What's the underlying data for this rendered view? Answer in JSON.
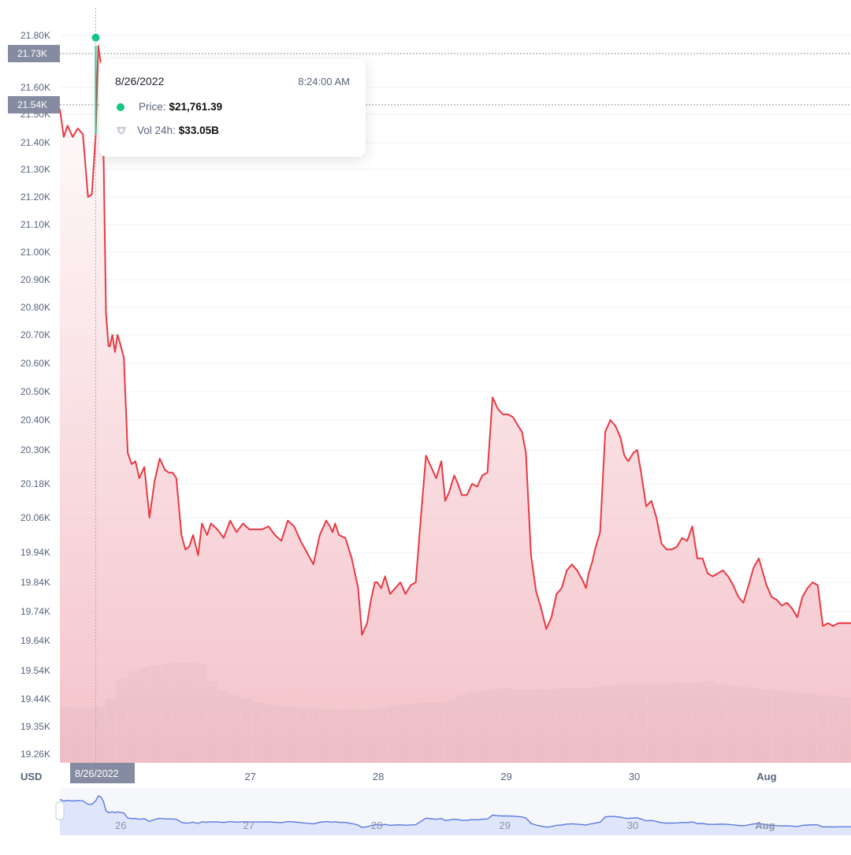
{
  "colors": {
    "price_line": "#ea3943",
    "hover_line": "#16c784",
    "area_top": "#ffffff",
    "area_bottom": "#f2b8c0",
    "volume_bar": "#d5d9e2",
    "axis_tag_bg": "#858ca2",
    "navigator_line": "#5b7be0",
    "navigator_fill": "#dfe5fb"
  },
  "crosshair": {
    "price_tag": "21.73K",
    "ref_price_tag": "21.54K",
    "date_tag": "8/26/2022"
  },
  "tooltip": {
    "date": "8/26/2022",
    "time": "8:24:00 AM",
    "price_label": "Price:",
    "price_value": "$21,761.39",
    "vol_label": "Vol 24h:",
    "vol_value": "$33.05B",
    "price_icon": "green-dot-icon",
    "vol_icon": "shield-icon"
  },
  "currency_label": "USD",
  "chart_data": {
    "type": "line",
    "title": "",
    "xlabel": "",
    "ylabel": "",
    "y_tick_labels": [
      "21.80K",
      "21.60K",
      "21.50K",
      "21.40K",
      "21.30K",
      "21.20K",
      "21.10K",
      "21.00K",
      "20.90K",
      "20.80K",
      "20.70K",
      "20.60K",
      "20.50K",
      "20.40K",
      "20.30K",
      "20.18K",
      "20.06K",
      "19.94K",
      "19.84K",
      "19.74K",
      "19.64K",
      "19.54K",
      "19.44K",
      "19.35K",
      "19.26K"
    ],
    "y_tick_values": [
      21800,
      21600,
      21500,
      21400,
      21300,
      21200,
      21100,
      21000,
      20900,
      20800,
      20700,
      20600,
      20500,
      20400,
      20300,
      20180,
      20060,
      19940,
      19840,
      19740,
      19640,
      19540,
      19440,
      19350,
      19260
    ],
    "x_tick_labels": [
      "26",
      "27",
      "28",
      "29",
      "30",
      "Aug"
    ],
    "x_tick_days": [
      26,
      27,
      28,
      29,
      30,
      31
    ],
    "xlim_days": [
      25.52,
      31.7
    ],
    "grid": true,
    "series": [
      {
        "values_day": [
          25.52,
          25.55,
          25.58,
          25.62,
          25.66,
          25.7,
          25.74,
          25.77,
          25.8,
          25.82,
          25.84,
          25.86,
          25.88,
          25.9,
          25.91,
          25.93,
          25.95,
          25.97,
          25.99,
          26.02,
          26.05,
          26.08,
          26.11,
          26.14,
          26.18,
          26.22,
          26.26,
          26.3,
          26.34,
          26.37,
          26.4,
          26.43,
          26.47,
          26.5,
          26.53,
          26.56,
          26.6,
          26.63,
          26.67,
          26.7,
          26.75,
          26.8,
          26.85,
          26.9,
          26.95,
          27.0,
          27.05,
          27.1,
          27.15,
          27.2,
          27.25,
          27.3,
          27.35,
          27.4,
          27.45,
          27.5,
          27.55,
          27.6,
          27.63,
          27.65,
          27.67,
          27.7,
          27.75,
          27.8,
          27.85,
          27.88,
          27.92,
          27.95,
          27.98,
          28.0,
          28.03,
          28.06,
          28.1,
          28.14,
          28.18,
          28.22,
          28.26,
          28.3,
          28.34,
          28.38,
          28.42,
          28.46,
          28.5,
          28.53,
          28.56,
          28.6,
          28.63,
          28.66,
          28.7,
          28.74,
          28.78,
          28.82,
          28.86,
          28.9,
          28.94,
          28.98,
          29.02,
          29.06,
          29.1,
          29.13,
          29.16,
          29.2,
          29.24,
          29.28,
          29.32,
          29.36,
          29.4,
          29.44,
          29.48,
          29.52,
          29.56,
          29.6,
          29.63,
          29.65,
          29.68,
          29.7,
          29.74,
          29.78,
          29.82,
          29.86,
          29.9,
          29.93,
          29.96,
          30.0,
          30.03,
          30.06,
          30.1,
          30.14,
          30.18,
          30.22,
          30.26,
          30.3,
          30.34,
          30.38,
          30.42,
          30.46,
          30.5,
          30.54,
          30.58,
          30.62,
          30.66,
          30.7,
          30.74,
          30.78,
          30.82,
          30.86,
          30.9,
          30.94,
          30.98,
          31.0,
          31.04,
          31.08,
          31.12,
          31.16,
          31.2,
          31.24,
          31.28,
          31.32,
          31.36,
          31.4,
          31.44,
          31.48,
          31.52,
          31.56,
          31.6,
          31.64,
          31.68,
          31.7
        ],
        "values_usd": [
          21520,
          21420,
          21460,
          21420,
          21450,
          21430,
          21200,
          21210,
          21430,
          21760,
          21690,
          21400,
          20780,
          20660,
          20660,
          20700,
          20640,
          20700,
          20670,
          20620,
          20290,
          20250,
          20260,
          20200,
          20240,
          20060,
          20190,
          20270,
          20230,
          20220,
          20220,
          20200,
          20000,
          19950,
          19960,
          20000,
          19930,
          20040,
          20000,
          20040,
          20020,
          19990,
          20050,
          20010,
          20040,
          20020,
          20020,
          20020,
          20030,
          20000,
          19980,
          20050,
          20030,
          19980,
          19940,
          19900,
          20000,
          20050,
          20030,
          20010,
          20040,
          20000,
          19990,
          19920,
          19820,
          19660,
          19700,
          19780,
          19840,
          19840,
          19820,
          19860,
          19800,
          19820,
          19840,
          19800,
          19830,
          19840,
          20060,
          20280,
          20240,
          20200,
          20260,
          20120,
          20150,
          20210,
          20180,
          20140,
          20140,
          20180,
          20170,
          20210,
          20220,
          20480,
          20440,
          20420,
          20420,
          20410,
          20380,
          20360,
          20290,
          19930,
          19810,
          19750,
          19680,
          19720,
          19800,
          19820,
          19880,
          19900,
          19880,
          19850,
          19820,
          19870,
          19910,
          19950,
          20010,
          20360,
          20400,
          20380,
          20340,
          20280,
          20260,
          20290,
          20300,
          20220,
          20100,
          20120,
          20060,
          19970,
          19950,
          19950,
          19960,
          19990,
          19980,
          20030,
          19920,
          19920,
          19870,
          19860,
          19870,
          19880,
          19860,
          19830,
          19790,
          19770,
          19830,
          19890,
          19920,
          19890,
          19830,
          19790,
          19780,
          19760,
          19770,
          19750,
          19720,
          19790,
          19820,
          19840,
          19830,
          19690,
          19700,
          19690,
          19700,
          19700,
          19700,
          19700
        ],
        "name": ""
      }
    ],
    "volume_levels": [
      0.48,
      0.47,
      0.47,
      0.48,
      0.55,
      0.72,
      0.78,
      0.82,
      0.84,
      0.85,
      0.86,
      0.86,
      0.85,
      0.7,
      0.62,
      0.58,
      0.55,
      0.52,
      0.5,
      0.49,
      0.48,
      0.47,
      0.47,
      0.46,
      0.46,
      0.46,
      0.46,
      0.46,
      0.47,
      0.49,
      0.5,
      0.51,
      0.52,
      0.52,
      0.53,
      0.58,
      0.6,
      0.62,
      0.63,
      0.64,
      0.63,
      0.63,
      0.63,
      0.63,
      0.64,
      0.64,
      0.64,
      0.65,
      0.66,
      0.67,
      0.67,
      0.68,
      0.68,
      0.68,
      0.69,
      0.69,
      0.69,
      0.7,
      0.68,
      0.66,
      0.65,
      0.64,
      0.63,
      0.62,
      0.61,
      0.6,
      0.59,
      0.58,
      0.57,
      0.56
    ],
    "highlight_point": {
      "day": 25.8,
      "usd": 21761.39
    },
    "reference_line_usd": 21540
  }
}
